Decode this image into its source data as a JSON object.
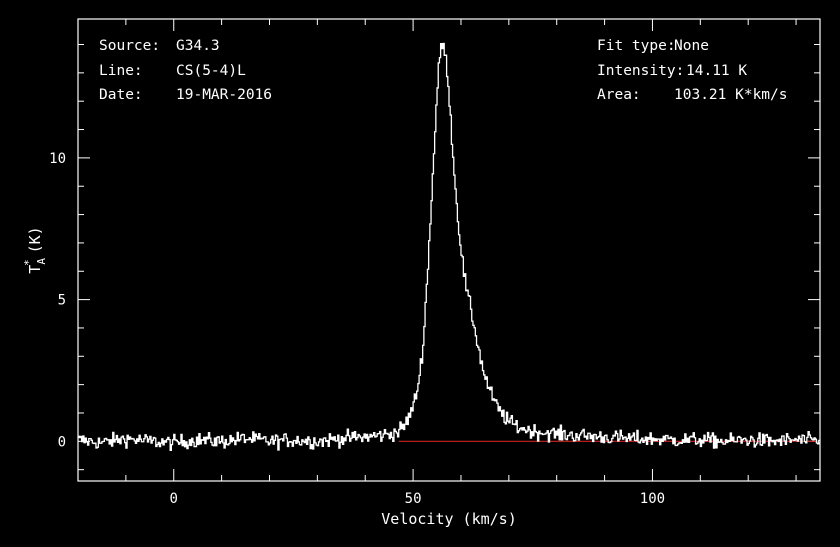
{
  "chart_data": {
    "type": "line",
    "xlabel": "Velocity (km/s)",
    "ylabel": "T*A (K)",
    "ylabel_main": "T",
    "ylabel_sub": "A",
    "ylabel_sup": "*",
    "ylabel_unit": "(K)",
    "xlim": [
      -20,
      135
    ],
    "ylim": [
      -1.4,
      14.9
    ],
    "xticks": [
      0,
      50,
      100
    ],
    "xtick_labels": [
      "0",
      "50",
      "100"
    ],
    "yticks": [
      0,
      5,
      10
    ],
    "ytick_labels": [
      "0",
      "5",
      "10"
    ],
    "info_left": [
      {
        "key": "Source:",
        "value": "G34.3"
      },
      {
        "key": "Line:",
        "value": "CS(5-4)L"
      },
      {
        "key": "Date:",
        "value": "19-MAR-2016"
      }
    ],
    "info_right": [
      {
        "key": "Fit type:",
        "value": "None"
      },
      {
        "key": "Intensity:",
        "value": "14.11 K"
      },
      {
        "key": "Area:",
        "value": "103.21 K*km/s"
      }
    ],
    "spectrum": {
      "x": [
        -20,
        -15,
        -10,
        -5,
        0,
        5,
        10,
        15,
        20,
        25,
        30,
        35,
        40,
        45,
        47,
        48,
        49,
        50,
        51,
        52,
        53,
        54,
        55,
        55.5,
        56,
        56.5,
        57,
        57.5,
        58,
        58.5,
        59,
        60,
        61,
        62,
        63,
        64,
        65,
        66,
        67,
        68,
        69,
        70,
        72,
        75,
        78,
        80,
        85,
        90,
        95,
        100,
        105,
        110,
        115,
        120,
        125,
        130,
        135
      ],
      "y": [
        0.05,
        -0.05,
        0.1,
        0.0,
        -0.05,
        0.05,
        0.0,
        0.1,
        0.0,
        0.05,
        0.0,
        0.1,
        0.15,
        0.25,
        0.35,
        0.5,
        0.8,
        1.2,
        1.9,
        3.2,
        5.8,
        9.0,
        12.2,
        13.4,
        14.11,
        13.8,
        13.3,
        12.4,
        11.0,
        9.8,
        8.6,
        6.8,
        5.5,
        4.7,
        3.9,
        3.0,
        2.3,
        1.8,
        1.4,
        1.1,
        0.9,
        0.7,
        0.5,
        0.35,
        0.3,
        0.25,
        0.2,
        0.15,
        0.1,
        0.08,
        0.05,
        0.05,
        0.0,
        0.05,
        0.0,
        0.05,
        0.0
      ],
      "noise_rms": 0.13,
      "color": "#ffffff"
    },
    "baseline": {
      "y": 0,
      "x_start": 47,
      "x_end": 135,
      "color": "#cc2222"
    },
    "frame_color": "#ffffff"
  }
}
